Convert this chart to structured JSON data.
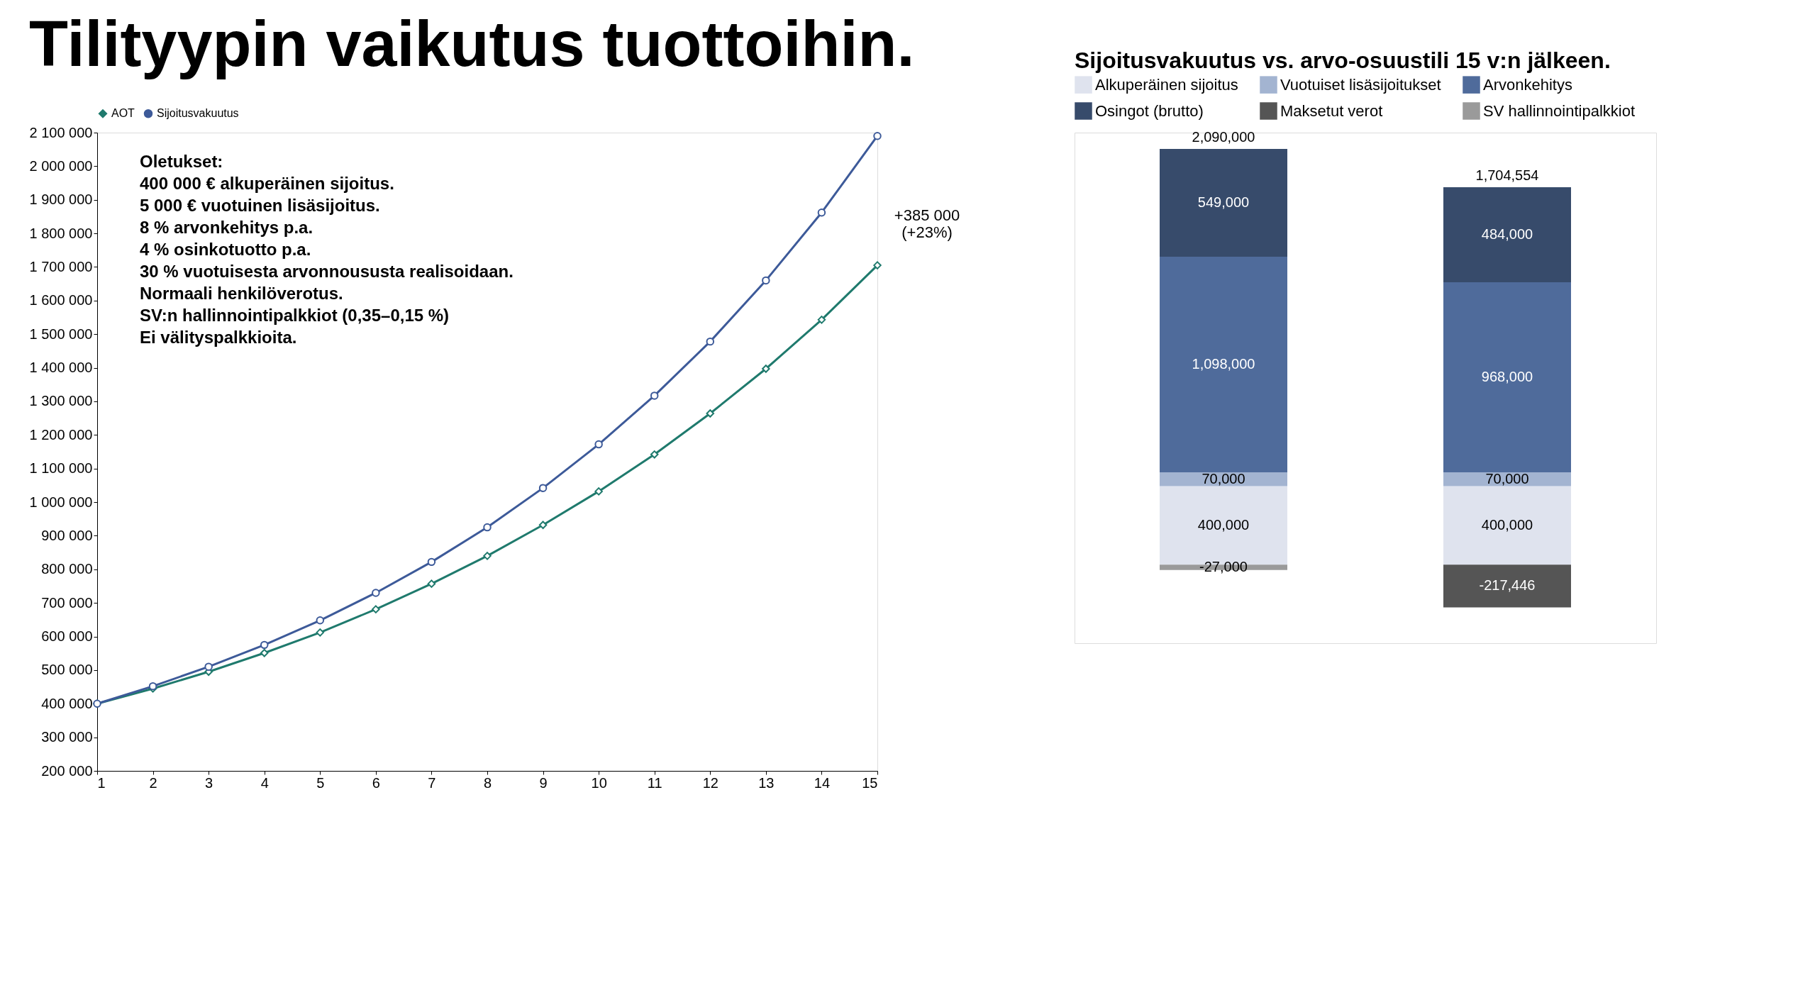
{
  "chart_data": [
    {
      "type": "line",
      "title": "Tilityypin vaikutus tuottoihin.",
      "x": [
        1,
        2,
        3,
        4,
        5,
        6,
        7,
        8,
        9,
        10,
        11,
        12,
        13,
        14,
        15
      ],
      "series": [
        {
          "name": "AOT",
          "color": "#1f7a6d",
          "marker": "diamond",
          "values": [
            400000,
            445000,
            495000,
            551000,
            612000,
            681000,
            757000,
            840000,
            932000,
            1032000,
            1142000,
            1264000,
            1397000,
            1543000,
            1705000
          ]
        },
        {
          "name": "Sijoitusvakuutus",
          "color": "#3d5a99",
          "marker": "circle",
          "values": [
            400000,
            452000,
            510000,
            575000,
            648000,
            730000,
            822000,
            925000,
            1042000,
            1172000,
            1317000,
            1478000,
            1660000,
            1862000,
            2090000
          ]
        }
      ],
      "xlim": [
        1,
        15
      ],
      "xticks": [
        1,
        2,
        3,
        4,
        5,
        6,
        7,
        8,
        9,
        10,
        11,
        12,
        13,
        14,
        15
      ],
      "ylim": [
        200000,
        2100000
      ],
      "yticks": [
        {
          "value": 200000,
          "label": "200 000"
        },
        {
          "value": 300000,
          "label": "300 000"
        },
        {
          "value": 400000,
          "label": "400 000"
        },
        {
          "value": 500000,
          "label": "500 000"
        },
        {
          "value": 600000,
          "label": "600 000"
        },
        {
          "value": 700000,
          "label": "700 000"
        },
        {
          "value": 800000,
          "label": "800 000"
        },
        {
          "value": 900000,
          "label": "900 000"
        },
        {
          "value": 1000000,
          "label": "1 000 000"
        },
        {
          "value": 1100000,
          "label": "1 100 000"
        },
        {
          "value": 1200000,
          "label": "1 200 000"
        },
        {
          "value": 1300000,
          "label": "1 300 000"
        },
        {
          "value": 1400000,
          "label": "1 400 000"
        },
        {
          "value": 1500000,
          "label": "1 500 000"
        },
        {
          "value": 1600000,
          "label": "1 600 000"
        },
        {
          "value": 1700000,
          "label": "1 700 000"
        },
        {
          "value": 1800000,
          "label": "1 800 000"
        },
        {
          "value": 1900000,
          "label": "1 900 000"
        },
        {
          "value": 2000000,
          "label": "2 000 000"
        },
        {
          "value": 2100000,
          "label": "2 100 000"
        }
      ],
      "grid": false,
      "legend": "top",
      "annotations": [
        "Oletukset:\n400 000 € alkuperäinen sijoitus.\n5 000 € vuotuinen lisäsijoitus.\n8 % arvonkehitys p.a.\n4 % osinkotuotto p.a.\n30 % vuotuisesta arvonnoususta realisoidaan.\nNormaali henkilöverotus.\nSV:n hallinnointipalkkiot (0,35–0,15 %)\nEi välityspalkkioita.",
        "+385 000\n(+23%)"
      ]
    },
    {
      "type": "bar",
      "title": "Sijoitusvakuutus vs. arvo-osuustili 15 v:n jälkeen.",
      "stacked": true,
      "categories": [
        null,
        null
      ],
      "series": [
        {
          "name": "Alkuperäinen sijoitus",
          "color": "#dfe3ee",
          "values": [
            400000,
            400000
          ],
          "value_labels": [
            "400,000",
            "400,000"
          ]
        },
        {
          "name": "Vuotuiset lisäsijoitukset",
          "color": "#a3b4d1",
          "values": [
            70000,
            70000
          ],
          "value_labels": [
            "70,000",
            "70,000"
          ]
        },
        {
          "name": "Arvonkehitys",
          "color": "#4f6b9b",
          "values": [
            1098000,
            968000
          ],
          "value_labels": [
            "1,098,000",
            "968,000"
          ]
        },
        {
          "name": "Osingot (brutto)",
          "color": "#374b6b",
          "values": [
            549000,
            484000
          ],
          "value_labels": [
            "549,000",
            "484,000"
          ]
        },
        {
          "name": "Maksetut verot",
          "color": "#555555",
          "values": [
            null,
            -217446
          ],
          "value_labels": [
            null,
            "-217,446"
          ]
        },
        {
          "name": "SV hallinnointipalkkiot",
          "color": "#9a9a9a",
          "values": [
            -27000,
            null
          ],
          "value_labels": [
            "-27,000",
            null
          ]
        }
      ],
      "totals": [
        "2,090,000",
        "1,704,554"
      ],
      "legend": "top"
    }
  ]
}
